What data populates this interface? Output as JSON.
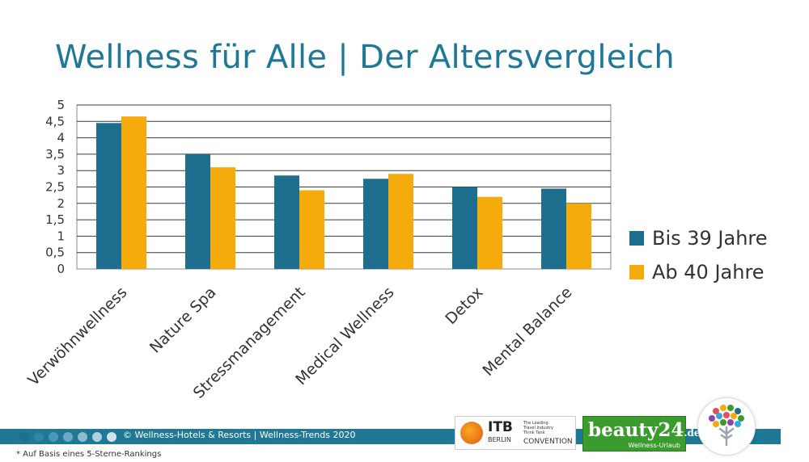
{
  "title": "Wellness für Alle | Der Altersvergleich",
  "chart_data": {
    "type": "bar",
    "categories": [
      "Verwöhnwellness",
      "Nature Spa",
      "Stressmanagement",
      "Medical Wellness",
      "Detox",
      "Mental Balance"
    ],
    "series": [
      {
        "name": "Bis 39 Jahre",
        "values": [
          4.45,
          3.5,
          2.85,
          2.75,
          2.5,
          2.45
        ],
        "color": "#1e6f8f"
      },
      {
        "name": "Ab 40 Jahre",
        "values": [
          4.65,
          3.1,
          2.4,
          2.9,
          2.2,
          2.0
        ],
        "color": "#f5ab0b"
      }
    ],
    "ylim": [
      0,
      5
    ],
    "yticks": [
      "0",
      "0,5",
      "1",
      "1,5",
      "2",
      "2,5",
      "3",
      "3,5",
      "4",
      "4,5",
      "5"
    ],
    "grid": true,
    "legend_position": "right"
  },
  "footer": {
    "copyright": "© Wellness-Hotels & Resorts | Wellness-Trends 2020",
    "footnote": "* Auf Basis eines 5-Sterne-Rankings",
    "dot_colors": [
      "#1e6f8f",
      "#2e85a6",
      "#4a98b6",
      "#6aaac4",
      "#8ebdd2",
      "#b0cfdf",
      "#d2e3ec"
    ]
  },
  "logos": {
    "itb_main": "ITB",
    "itb_city": "BERLIN",
    "itb_tagline": "The Leading Travel Industry Think Tank",
    "itb_convention": "CONVENTION",
    "beauty_name": "beauty24",
    "beauty_tld": ".de",
    "beauty_sub": "Wellness-Urlaub"
  }
}
